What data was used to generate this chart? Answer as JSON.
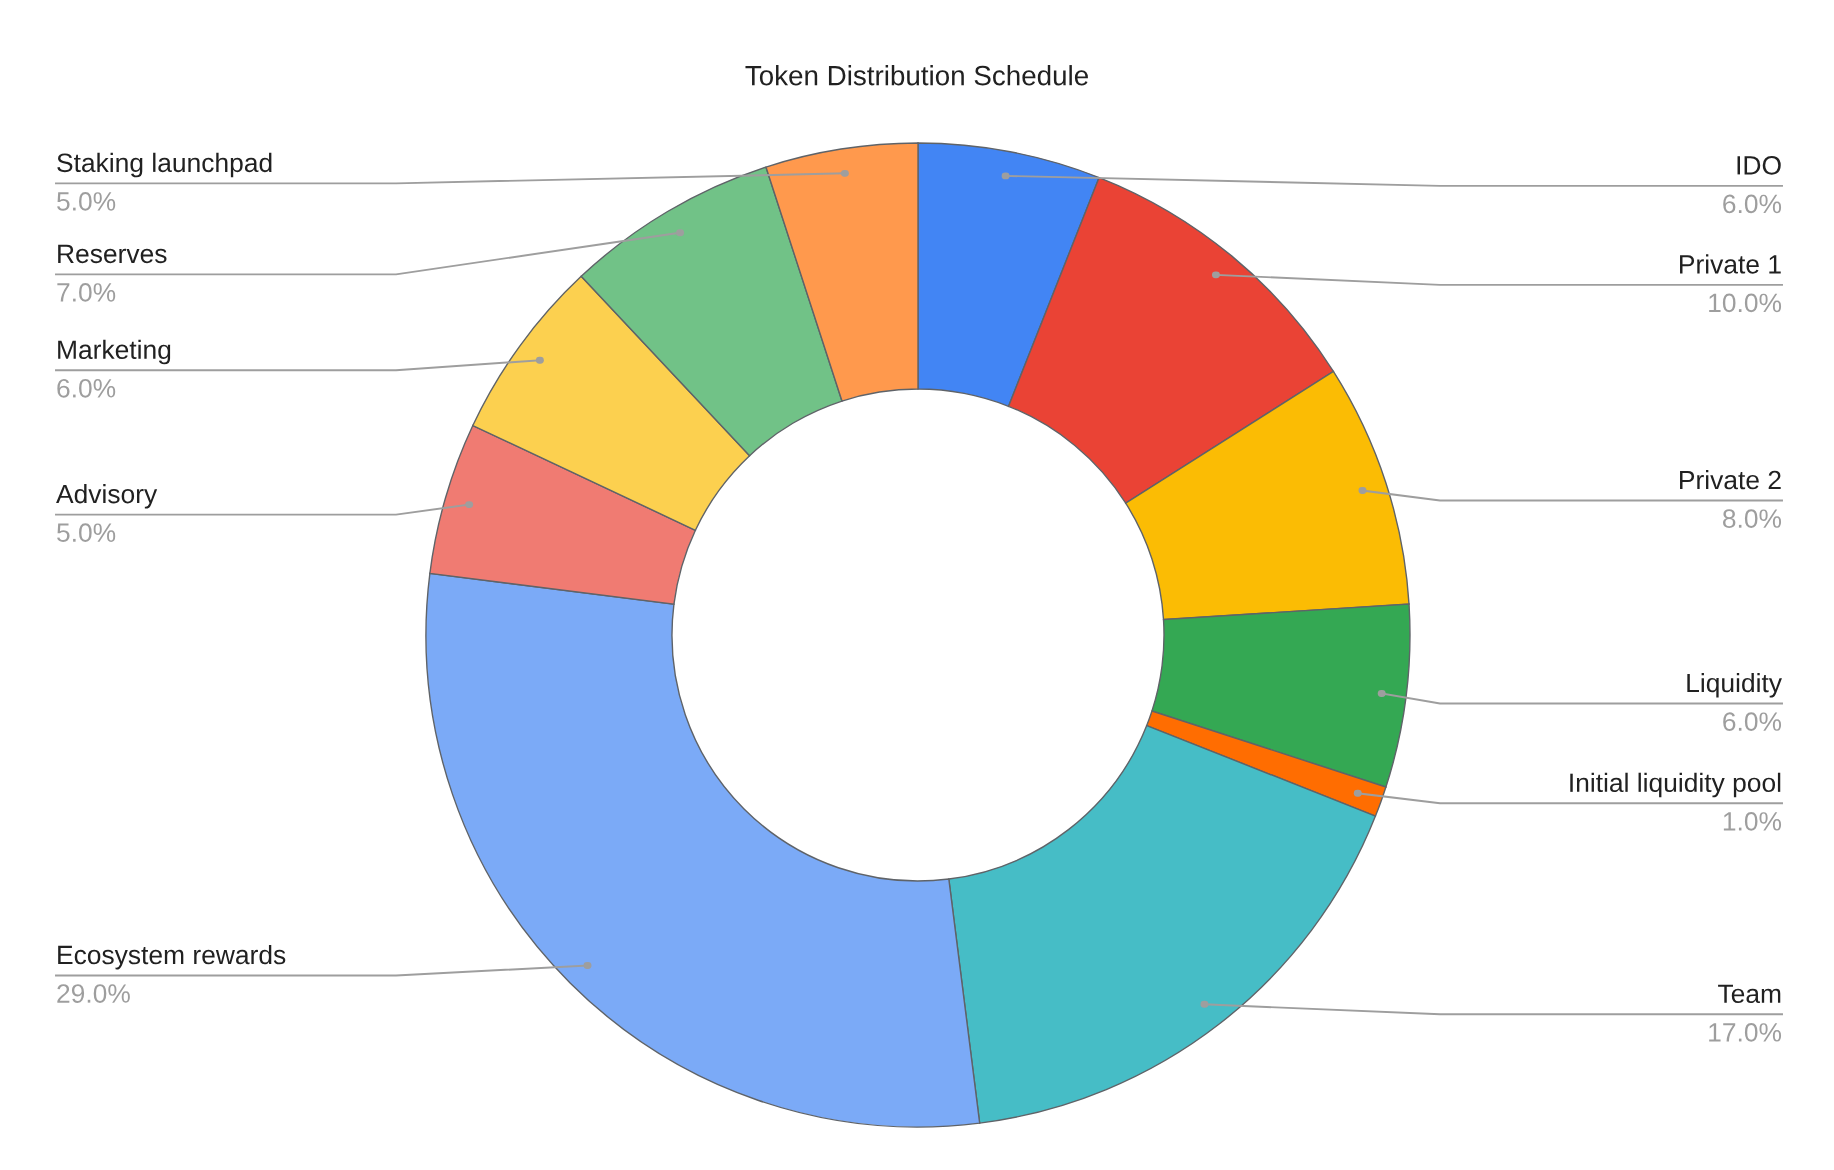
{
  "chart_data": {
    "type": "donut",
    "title": "Token Distribution Schedule",
    "categories": [
      "IDO",
      "Private 1",
      "Private 2",
      "Liquidity",
      "Initial liquidity pool",
      "Team",
      "Ecosystem rewards",
      "Advisory",
      "Marketing",
      "Reserves",
      "Staking launchpad"
    ],
    "values": [
      6,
      10,
      8,
      6,
      1,
      17,
      29,
      5,
      6,
      7,
      5
    ],
    "colors": [
      "#4285f4",
      "#ea4335",
      "#fbbc04",
      "#34a853",
      "#ff6d01",
      "#46bdc6",
      "#7baaf7",
      "#f07b72",
      "#fcd04f",
      "#71c287",
      "#ff994d"
    ],
    "value_labels": [
      "6.0%",
      "10.0%",
      "8.0%",
      "6.0%",
      "1.0%",
      "17.0%",
      "29.0%",
      "5.0%",
      "6.0%",
      "7.0%",
      "5.0%"
    ]
  }
}
